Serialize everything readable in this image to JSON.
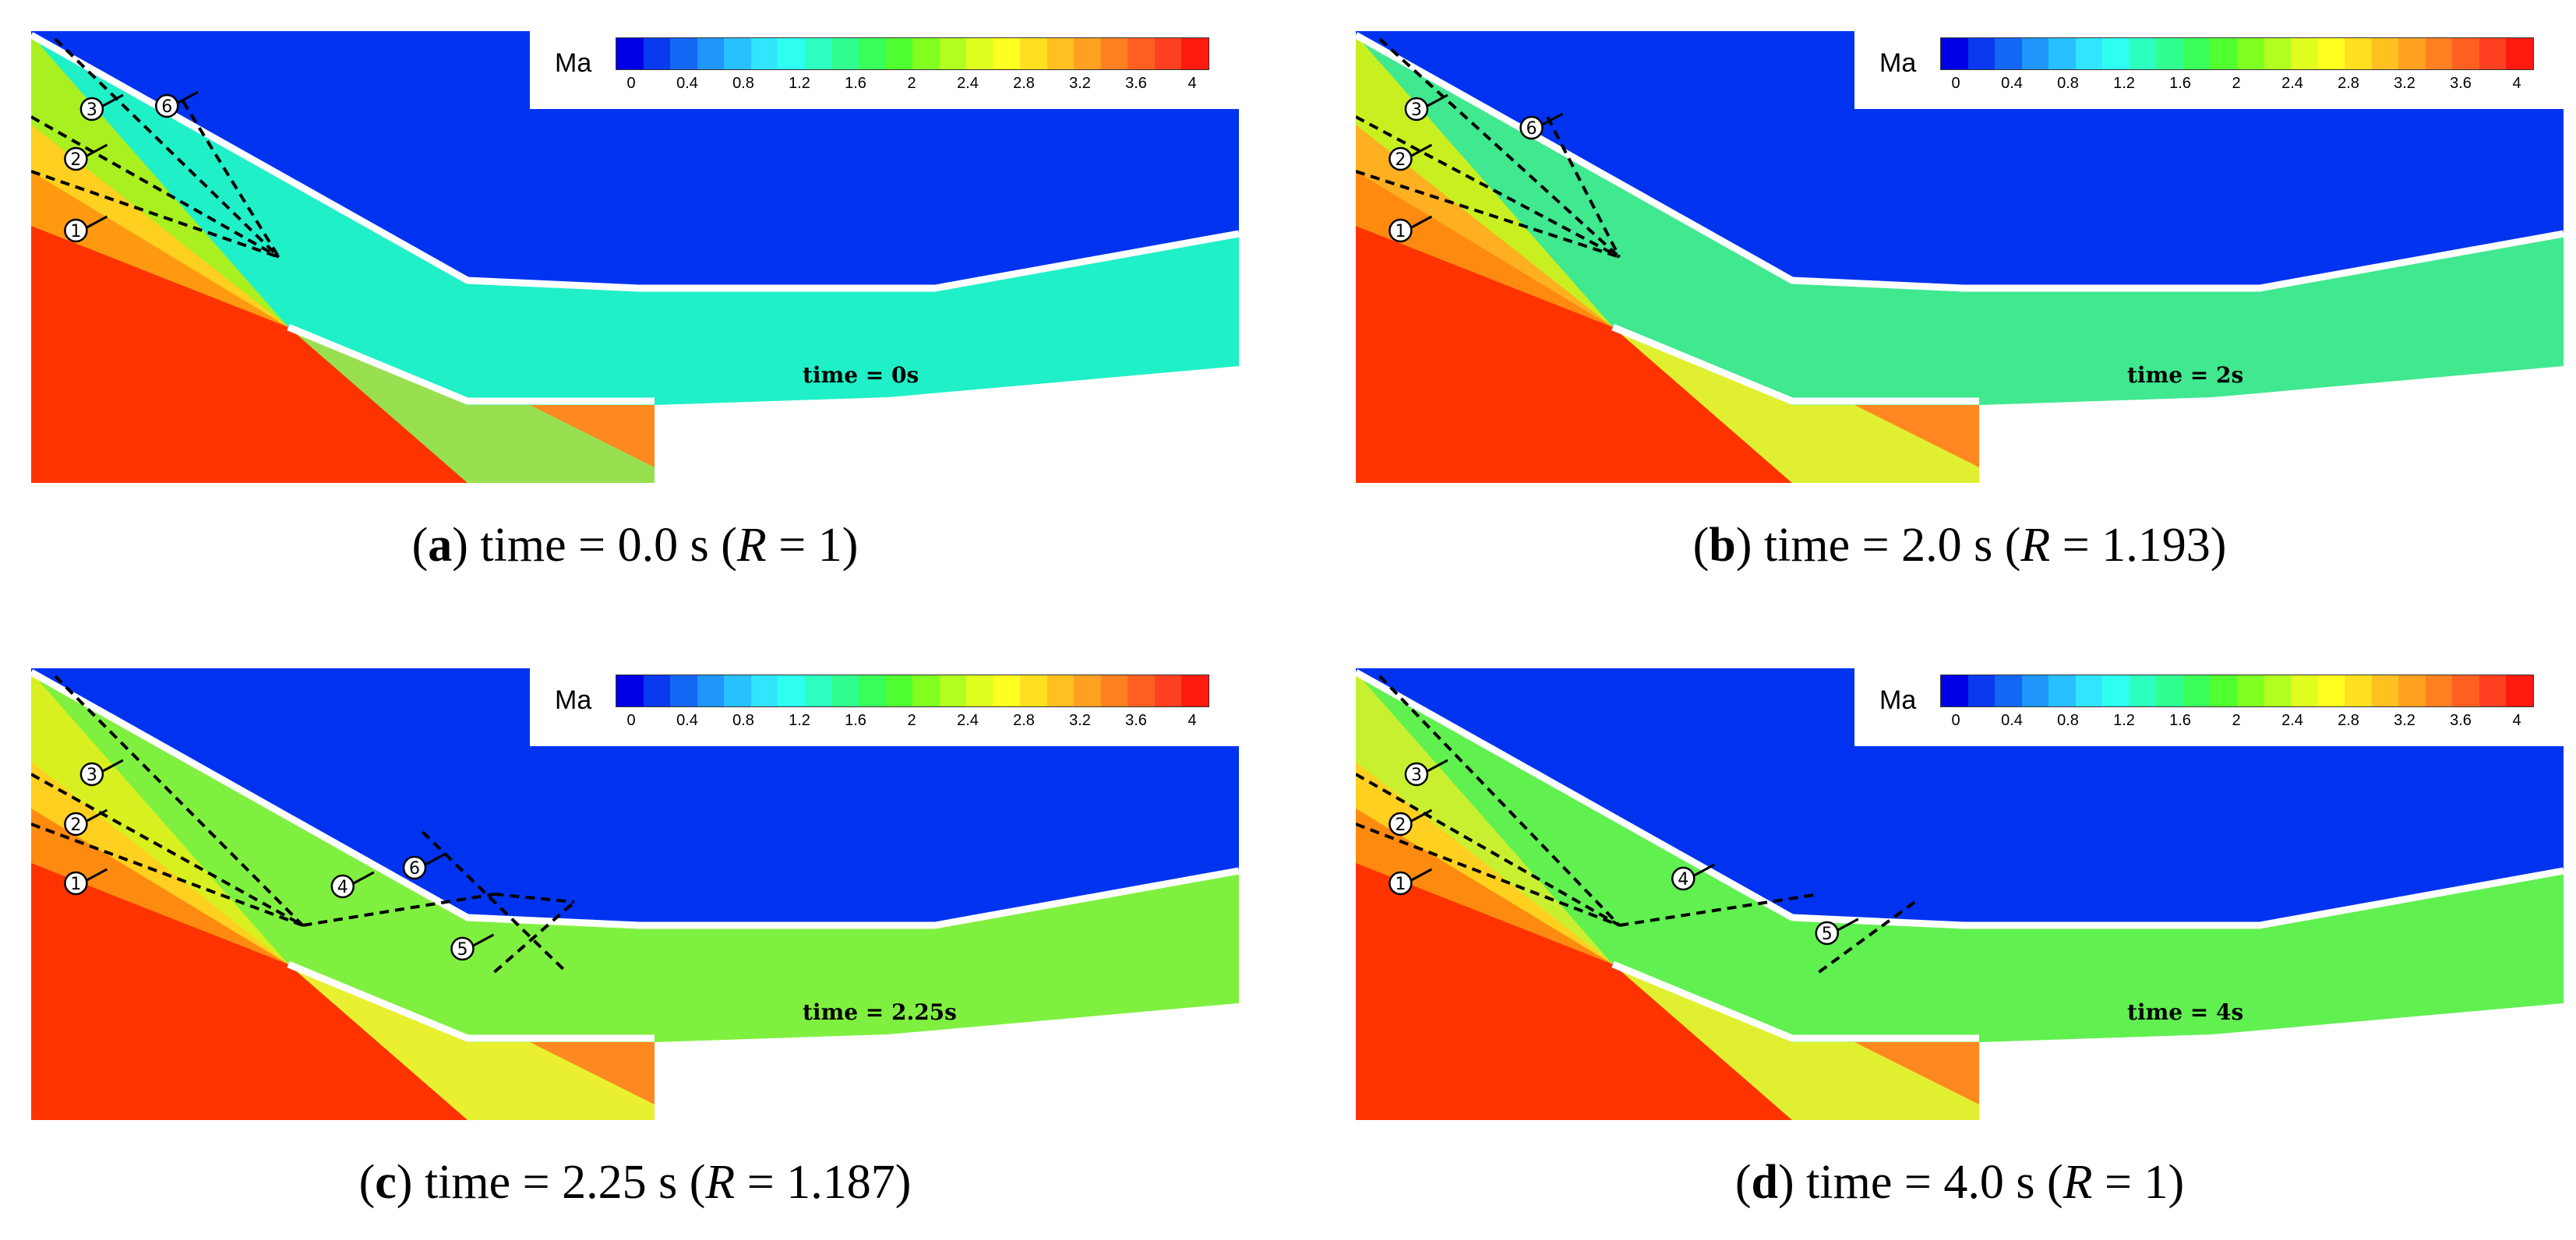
{
  "legend": {
    "label": "Ma",
    "ticks": [
      "0",
      "0.4",
      "0.8",
      "1.2",
      "1.6",
      "2",
      "2.4",
      "2.8",
      "3.2",
      "3.6",
      "4"
    ],
    "colors": [
      "#0000e6",
      "#0a3af0",
      "#1466f5",
      "#1e96fa",
      "#28c0ff",
      "#30e6ff",
      "#2dfff0",
      "#2dffc0",
      "#30ff90",
      "#38ff5a",
      "#50ff30",
      "#80ff20",
      "#b0ff20",
      "#e0ff20",
      "#ffff20",
      "#ffe020",
      "#ffc020",
      "#ffa020",
      "#ff8020",
      "#ff6020",
      "#ff4020",
      "#ff1a10"
    ]
  },
  "panels": [
    {
      "id": "a",
      "time_label": "time = 0s",
      "cap_open": "(",
      "cap_letter": "a",
      "cap_mid": ") time = 0.0 s (",
      "cap_var": "R",
      "cap_eq": " = 1)",
      "markers": [
        "1",
        "2",
        "3",
        "6"
      ]
    },
    {
      "id": "b",
      "time_label": "time = 2s",
      "cap_open": "(",
      "cap_letter": "b",
      "cap_mid": ") time = 2.0 s (",
      "cap_var": "R",
      "cap_eq": " = 1.193)",
      "markers": [
        "1",
        "2",
        "3",
        "6"
      ]
    },
    {
      "id": "c",
      "time_label": "time = 2.25s",
      "cap_open": "(",
      "cap_letter": "c",
      "cap_mid": ") time = 2.25 s (",
      "cap_var": "R",
      "cap_eq": " = 1.187)",
      "markers": [
        "1",
        "2",
        "3",
        "4",
        "5",
        "6"
      ]
    },
    {
      "id": "d",
      "time_label": "time = 4s",
      "cap_open": "(",
      "cap_letter": "d",
      "cap_mid": ") time = 4.0 s (",
      "cap_var": "R",
      "cap_eq": " = 1)",
      "markers": [
        "1",
        "2",
        "3",
        "4",
        "5"
      ]
    }
  ]
}
